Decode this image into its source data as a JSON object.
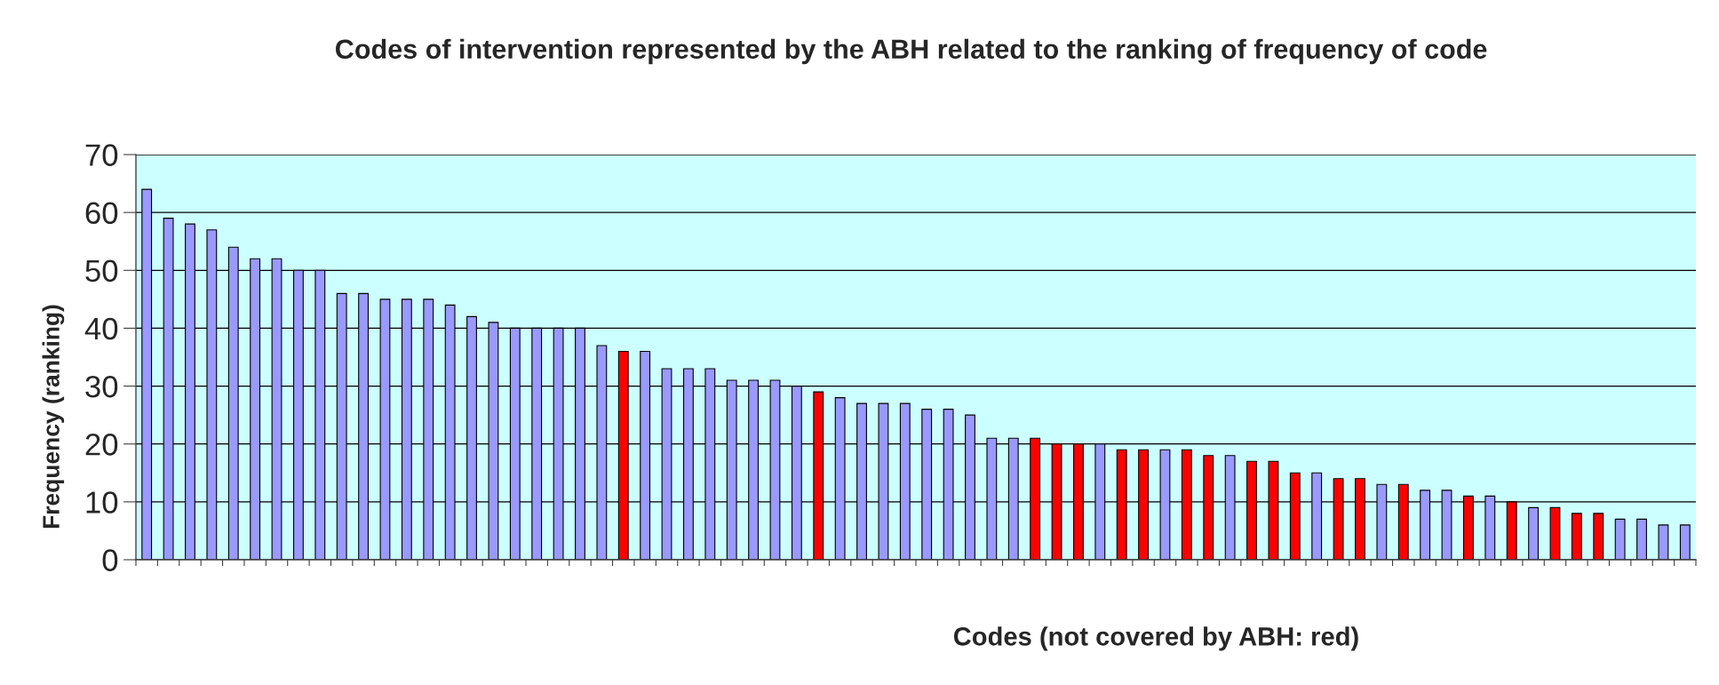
{
  "chart_data": {
    "type": "bar",
    "title": "Codes of intervention represented by the ABH related to the ranking of frequency of code",
    "xlabel": "Codes (not covered by ABH: red)",
    "ylabel": "Frequency (ranking)",
    "categories": [
      null,
      null,
      null,
      null,
      null,
      null,
      null,
      null,
      null,
      null,
      null,
      null,
      null,
      null,
      null,
      null,
      null,
      null,
      null,
      null,
      null,
      null,
      null,
      null,
      null,
      null,
      null,
      null,
      null,
      null,
      null,
      null,
      null,
      null,
      null,
      null,
      null,
      null,
      null,
      null,
      null,
      null,
      null,
      null,
      null,
      null,
      null,
      null,
      null,
      null,
      null,
      null,
      null,
      null,
      null,
      null,
      null,
      null,
      null,
      null,
      null,
      null,
      null,
      null,
      null,
      null,
      null,
      null,
      null,
      null,
      null,
      null
    ],
    "values": [
      64,
      59,
      58,
      57,
      54,
      52,
      52,
      50,
      50,
      46,
      46,
      45,
      45,
      45,
      44,
      42,
      41,
      40,
      40,
      40,
      40,
      37,
      36,
      36,
      33,
      33,
      33,
      31,
      31,
      31,
      30,
      29,
      28,
      27,
      27,
      27,
      26,
      26,
      25,
      21,
      21,
      21,
      20,
      20,
      20,
      19,
      19,
      19,
      19,
      18,
      18,
      17,
      17,
      15,
      15,
      14,
      14,
      13,
      13,
      12,
      12,
      11,
      11,
      10,
      9,
      9,
      8,
      8,
      7,
      7,
      6,
      6
    ],
    "colors": [
      "#9999ff",
      "#9999ff",
      "#9999ff",
      "#9999ff",
      "#9999ff",
      "#9999ff",
      "#9999ff",
      "#9999ff",
      "#9999ff",
      "#9999ff",
      "#9999ff",
      "#9999ff",
      "#9999ff",
      "#9999ff",
      "#9999ff",
      "#9999ff",
      "#9999ff",
      "#9999ff",
      "#9999ff",
      "#9999ff",
      "#9999ff",
      "#9999ff",
      "#ff0000",
      "#9999ff",
      "#9999ff",
      "#9999ff",
      "#9999ff",
      "#9999ff",
      "#9999ff",
      "#9999ff",
      "#9999ff",
      "#ff0000",
      "#9999ff",
      "#9999ff",
      "#9999ff",
      "#9999ff",
      "#9999ff",
      "#9999ff",
      "#9999ff",
      "#9999ff",
      "#9999ff",
      "#ff0000",
      "#ff0000",
      "#ff0000",
      "#9999ff",
      "#ff0000",
      "#ff0000",
      "#9999ff",
      "#ff0000",
      "#ff0000",
      "#9999ff",
      "#ff0000",
      "#ff0000",
      "#ff0000",
      "#9999ff",
      "#ff0000",
      "#ff0000",
      "#9999ff",
      "#ff0000",
      "#9999ff",
      "#9999ff",
      "#ff0000",
      "#9999ff",
      "#ff0000",
      "#9999ff",
      "#ff0000",
      "#ff0000",
      "#ff0000",
      "#9999ff",
      "#9999ff",
      "#9999ff",
      "#9999ff"
    ],
    "ylim": [
      0,
      70
    ],
    "yticks": [
      0,
      10,
      20,
      30,
      40,
      50,
      60,
      70
    ],
    "grid": "y"
  }
}
